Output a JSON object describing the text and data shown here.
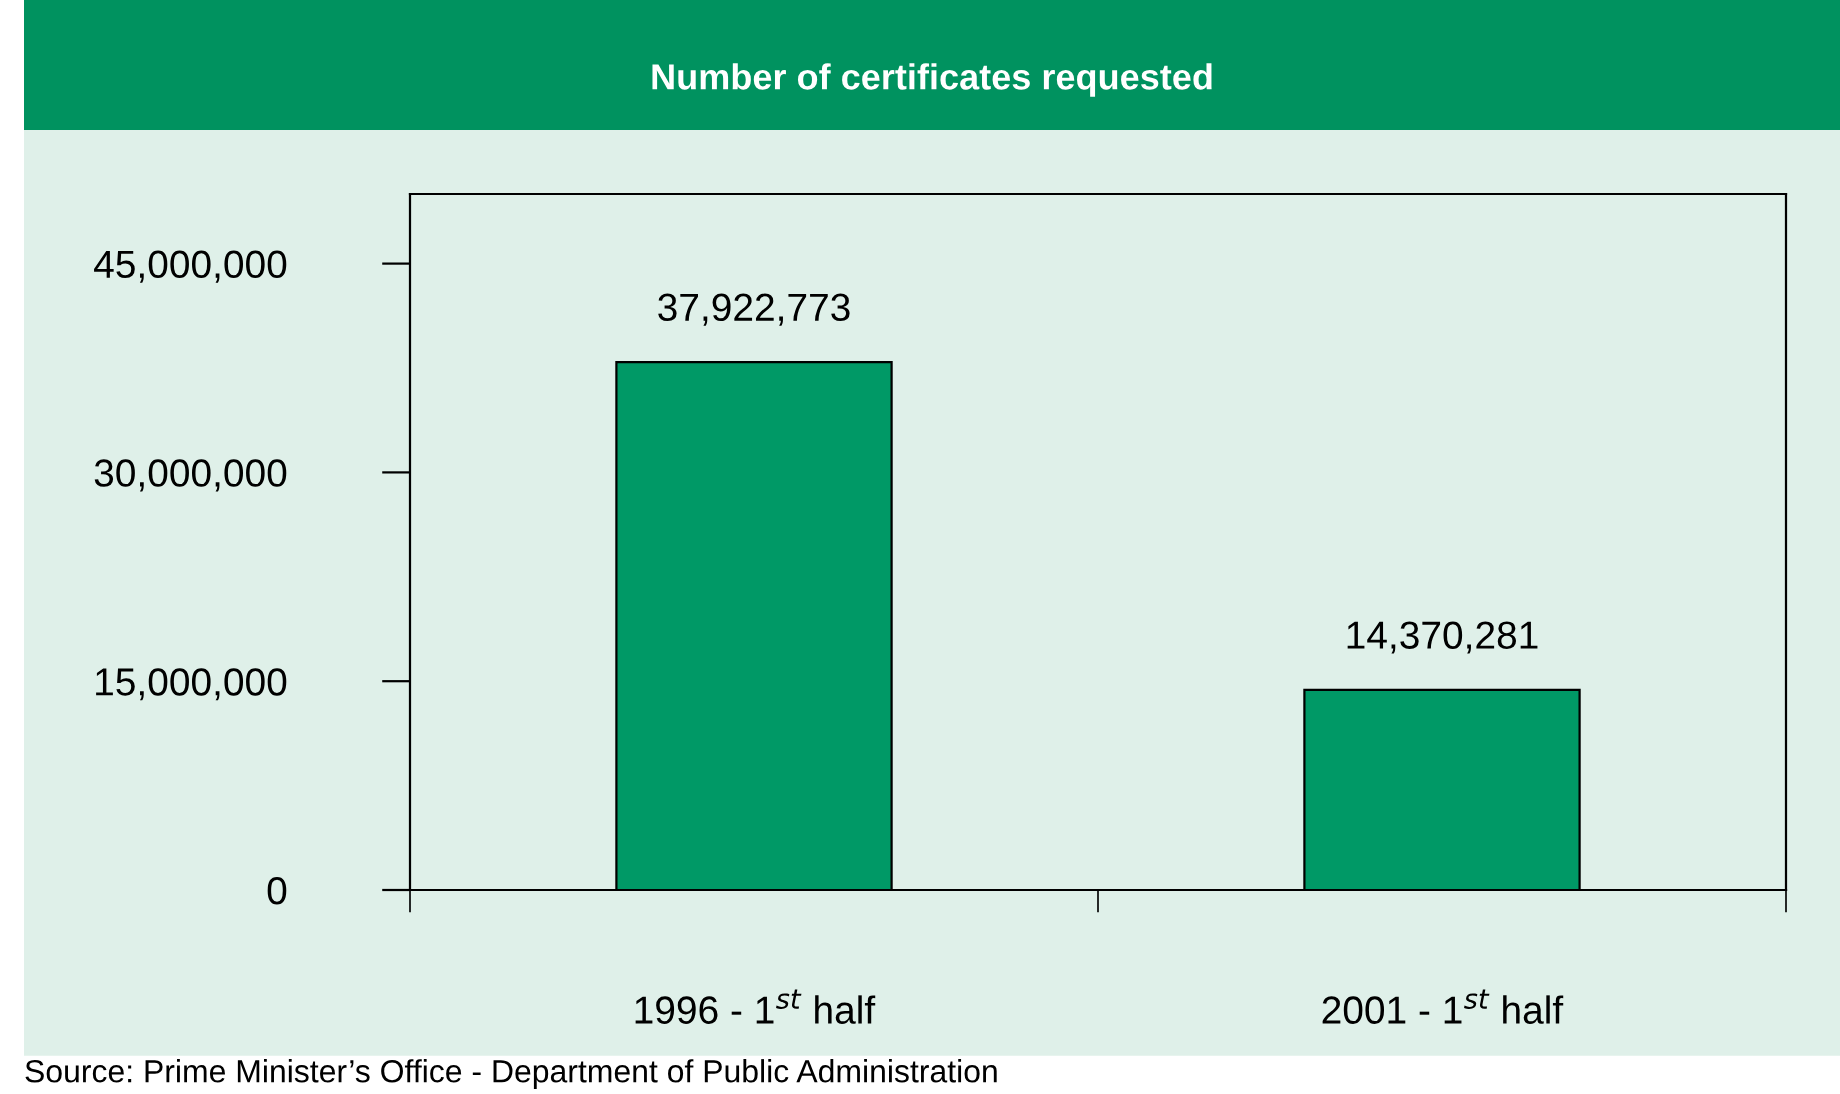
{
  "chart_data": {
    "type": "bar",
    "title": "Number of certificates requested",
    "categories": [
      "1996 - 1$^{st}$ half",
      "2001 - 1$^{st}$ half"
    ],
    "values": [
      37922773,
      14370281
    ],
    "value_labels": [
      "37,922,773",
      "14,370,281"
    ],
    "color": "#009966",
    "ylim": [
      0,
      50000000
    ],
    "yticks": [
      0,
      {
        "value": 15000000,
        "label": "15,000,000"
      },
      {
        "value": 30000000,
        "label": "30,000,000"
      },
      {
        "value": 45000000,
        "label": "45,000,000"
      }
    ],
    "grid": false,
    "legend": false,
    "annotations": [
      "Source: Prime Minister’s Office - Department of Public Administration"
    ]
  }
}
